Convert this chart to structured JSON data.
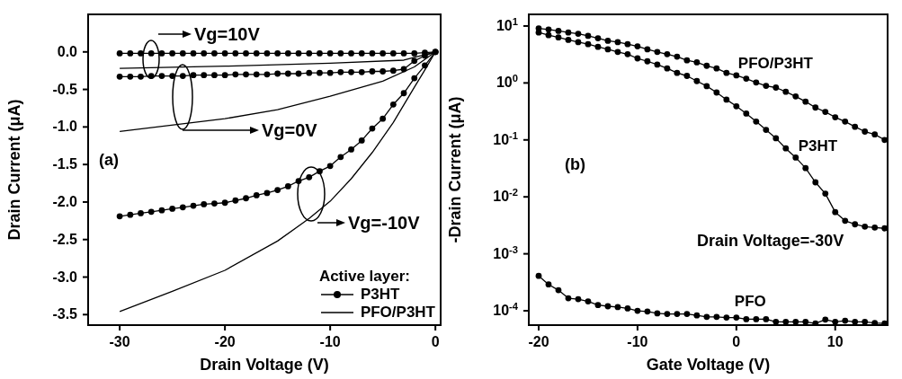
{
  "chart_data": [
    {
      "type": "line",
      "xlabel": "Drain Voltage (V)",
      "ylabel": "Drain Current (μA)",
      "xlim": [
        -33,
        0.5
      ],
      "ylim": [
        -3.64,
        0.5
      ],
      "xticks": [
        -30,
        -20,
        -10,
        0
      ],
      "yticks": [
        {
          "value": 0,
          "label": "0.0"
        },
        {
          "value": -0.5,
          "label": "-0.5"
        },
        {
          "value": -1,
          "label": "-1.0"
        },
        {
          "value": -1.5,
          "label": "-1.5"
        },
        {
          "value": -2,
          "label": "-2.0"
        },
        {
          "value": -2.5,
          "label": "-2.5"
        },
        {
          "value": -3,
          "label": "-3.0"
        },
        {
          "value": -3.5,
          "label": "-3.5"
        }
      ],
      "legend": "bottom right",
      "legend_title": "Active layer:",
      "line_style": "solid",
      "grid": false,
      "annotations": [
        "(a)",
        "Vg=10V",
        "Vg=0V",
        "Vg=-10V"
      ],
      "series": [
        {
          "name": "P3HT",
          "color": "#000000",
          "marker": "circle",
          "x": [
            -30,
            -29,
            -28,
            -27,
            -26,
            -25,
            -24,
            -23,
            -22,
            -21,
            -20,
            -19,
            -18,
            -17,
            -16,
            -15,
            -14,
            -13,
            -12,
            -11,
            -10,
            -9,
            -8,
            -7,
            -6,
            -5,
            -4,
            -3,
            -2,
            -1,
            0
          ],
          "values": [
            -0.02,
            -0.02,
            -0.02,
            -0.02,
            -0.02,
            -0.02,
            -0.02,
            -0.02,
            -0.02,
            -0.02,
            -0.02,
            -0.02,
            -0.02,
            -0.02,
            -0.02,
            -0.02,
            -0.02,
            -0.02,
            -0.02,
            -0.02,
            -0.02,
            -0.02,
            -0.02,
            -0.02,
            -0.02,
            -0.02,
            -0.02,
            -0.02,
            -0.02,
            -0.01,
            0
          ]
        },
        {
          "color": "#000000",
          "marker": "circle",
          "x": [
            -30,
            -29,
            -28,
            -27,
            -26,
            -25,
            -24,
            -23,
            -22,
            -21,
            -20,
            -19,
            -18,
            -17,
            -16,
            -15,
            -14,
            -13,
            -12,
            -11,
            -10,
            -9,
            -8,
            -7,
            -6,
            -5,
            -4,
            -3,
            -2,
            -1,
            0
          ],
          "values": [
            -0.33,
            -0.33,
            -0.33,
            -0.32,
            -0.32,
            -0.32,
            -0.32,
            -0.31,
            -0.31,
            -0.31,
            -0.31,
            -0.3,
            -0.3,
            -0.3,
            -0.3,
            -0.29,
            -0.29,
            -0.29,
            -0.28,
            -0.28,
            -0.28,
            -0.27,
            -0.27,
            -0.27,
            -0.26,
            -0.26,
            -0.25,
            -0.23,
            -0.12,
            -0.05,
            0
          ]
        },
        {
          "color": "#000000",
          "marker": "circle",
          "x": [
            -30,
            -29,
            -28,
            -27,
            -26,
            -25,
            -24,
            -23,
            -22,
            -21,
            -20,
            -19,
            -18,
            -17,
            -16,
            -15,
            -14,
            -13,
            -12,
            -11,
            -10,
            -9,
            -8,
            -7,
            -6,
            -5,
            -4,
            -3,
            -2,
            -1,
            0
          ],
          "values": [
            -2.19,
            -2.17,
            -2.15,
            -2.13,
            -2.11,
            -2.09,
            -2.07,
            -2.05,
            -2.03,
            -2.02,
            -2.01,
            -1.98,
            -1.95,
            -1.91,
            -1.88,
            -1.84,
            -1.79,
            -1.72,
            -1.67,
            -1.59,
            -1.52,
            -1.4,
            -1.3,
            -1.18,
            -1.02,
            -0.89,
            -0.7,
            -0.55,
            -0.35,
            -0.18,
            0
          ]
        },
        {
          "name": "PFO/P3HT",
          "color": "#000000",
          "marker": "none",
          "x": [
            -30,
            -20,
            -10,
            -3,
            0
          ],
          "values": [
            -0.22,
            -0.19,
            -0.15,
            -0.11,
            0
          ]
        },
        {
          "color": "#000000",
          "marker": "none",
          "x": [
            -30,
            -20,
            -15,
            -10,
            -5,
            -2,
            0
          ],
          "values": [
            -1.06,
            -0.89,
            -0.77,
            -0.59,
            -0.39,
            -0.2,
            0
          ]
        },
        {
          "color": "#000000",
          "marker": "none",
          "x": [
            -30,
            -25,
            -20,
            -15,
            -12,
            -10,
            -8,
            -6,
            -4,
            -2,
            -1,
            0
          ],
          "values": [
            -3.46,
            -3.19,
            -2.91,
            -2.52,
            -2.22,
            -1.99,
            -1.69,
            -1.34,
            -0.94,
            -0.47,
            -0.24,
            0
          ]
        }
      ]
    },
    {
      "type": "line",
      "xlabel": "Gate Voltage (V)",
      "ylabel": "-Drain Current (μA)",
      "log": "y",
      "xlim": [
        -21,
        15.3
      ],
      "ylim": [
        5.6e-05,
        16
      ],
      "xticks": [
        -20,
        -10,
        0,
        10
      ],
      "yticks": [
        {
          "value": 10,
          "label": "10$^{1}$"
        },
        {
          "value": 1,
          "label": "10$^{0}$"
        },
        {
          "value": 0.1,
          "label": "10$^{-1}$"
        },
        {
          "value": 0.01,
          "label": "10$^{-2}$"
        },
        {
          "value": 0.001,
          "label": "10$^{-3}$"
        },
        {
          "value": 0.0001,
          "label": "10$^{-4}$"
        }
      ],
      "marker": "circle",
      "line_style": "solid",
      "grid": false,
      "legend": false,
      "annotations": [
        "(b)",
        "Drain Voltage=-30V"
      ],
      "x": [
        -20,
        -19,
        -18,
        -17,
        -16,
        -15,
        -14,
        -13,
        -12,
        -11,
        -10,
        -9,
        -8,
        -7,
        -6,
        -5,
        -4,
        -3,
        -2,
        -1,
        0,
        1,
        2,
        3,
        4,
        5,
        6,
        7,
        8,
        9,
        10,
        11,
        12,
        13,
        14,
        15
      ],
      "series": [
        {
          "name": "PFO/P3HT",
          "color": "#000000",
          "values": [
            9.1,
            8.7,
            8.2,
            7.7,
            7.3,
            6.7,
            6.1,
            5.5,
            5.2,
            4.8,
            4.4,
            3.9,
            3.5,
            3.2,
            2.9,
            2.5,
            2.3,
            2.0,
            1.8,
            1.5,
            1.36,
            1.19,
            1.02,
            0.89,
            0.83,
            0.7,
            0.58,
            0.47,
            0.37,
            0.31,
            0.25,
            0.21,
            0.17,
            0.14,
            0.125,
            0.1
          ]
        },
        {
          "name": "P3HT",
          "color": "#000000",
          "values": [
            7.7,
            6.9,
            6.3,
            5.7,
            5.2,
            4.8,
            4.3,
            3.9,
            3.5,
            3.2,
            2.7,
            2.4,
            2.1,
            1.8,
            1.5,
            1.33,
            1.08,
            0.88,
            0.68,
            0.51,
            0.39,
            0.29,
            0.21,
            0.15,
            0.107,
            0.071,
            0.049,
            0.032,
            0.018,
            0.0114,
            0.0054,
            0.0038,
            0.0033,
            0.003,
            0.0029,
            0.0028
          ]
        },
        {
          "name": "PFO",
          "color": "#000000",
          "values": [
            0.00041,
            0.00029,
            0.00023,
            0.000166,
            0.00016,
            0.000146,
            0.000126,
            0.00012,
            0.000116,
            0.00011,
            0.0001,
            9.7e-05,
            9e-05,
            8.8e-05,
            8.8e-05,
            8.8e-05,
            8.3e-05,
            7.8e-05,
            7.8e-05,
            7.6e-05,
            7.6e-05,
            7.1e-05,
            7.1e-05,
            7.1e-05,
            6.4e-05,
            6.4e-05,
            6.4e-05,
            6.4e-05,
            6e-05,
            7e-05,
            6.4e-05,
            6.7e-05,
            6.4e-05,
            6.4e-05,
            6.1e-05,
            6e-05
          ]
        }
      ]
    }
  ]
}
